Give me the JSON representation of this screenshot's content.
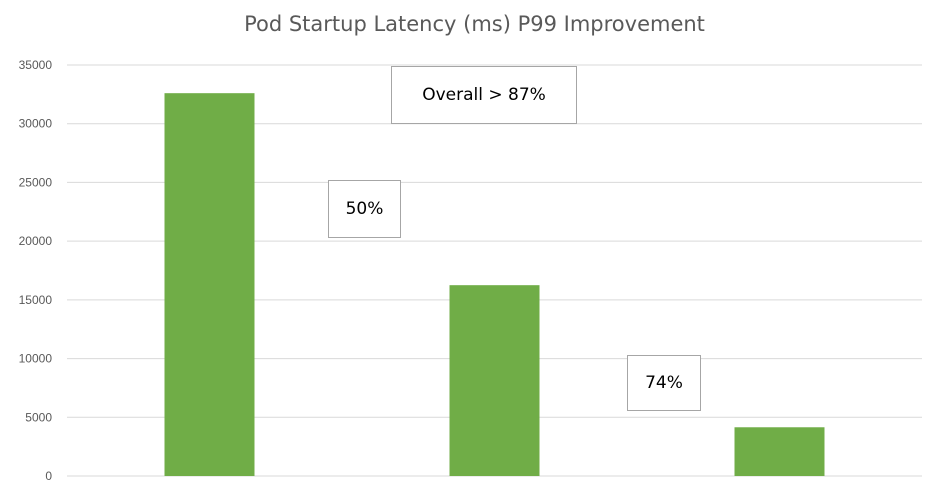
{
  "chart_data": {
    "type": "bar",
    "title": "Pod Startup Latency (ms) P99 Improvement",
    "xlabel": "",
    "ylabel": "",
    "categories": [
      "",
      "",
      ""
    ],
    "values": [
      32600,
      16250,
      4150
    ],
    "ylim": [
      0,
      35000
    ],
    "yticks": [
      "0",
      "5000",
      "10000",
      "15000",
      "20000",
      "25000",
      "30000",
      "35000"
    ],
    "grid": true,
    "bar_color": "#70ad47",
    "annotations": [
      "Overall > 87%",
      "50%",
      "74%"
    ]
  }
}
